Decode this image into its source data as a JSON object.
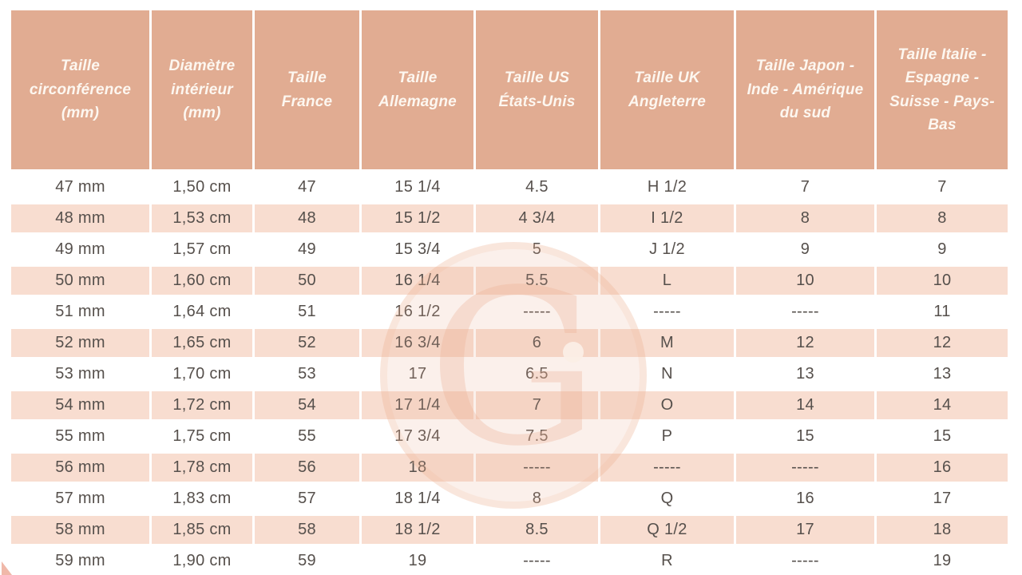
{
  "table": {
    "headers": [
      "Taille circonférence (mm)",
      "Diamètre intérieur (mm)",
      "Taille France",
      "Taille Allemagne",
      "Taille US États-Unis",
      "Taille UK Angleterre",
      "Taille Japon - Inde - Amérique du sud",
      "Taille Italie - Espagne - Suisse - Pays-Bas"
    ],
    "rows": [
      [
        "47 mm",
        "1,50 cm",
        "47",
        "15 1/4",
        "4.5",
        "H 1/2",
        "7",
        "7"
      ],
      [
        "48 mm",
        "1,53 cm",
        "48",
        "15 1/2",
        "4 3/4",
        "I 1/2",
        "8",
        "8"
      ],
      [
        "49 mm",
        "1,57 cm",
        "49",
        "15 3/4",
        "5",
        "J 1/2",
        "9",
        "9"
      ],
      [
        "50 mm",
        "1,60 cm",
        "50",
        "16 1/4",
        "5.5",
        "L",
        "10",
        "10"
      ],
      [
        "51 mm",
        "1,64 cm",
        "51",
        "16 1/2",
        "-----",
        "-----",
        "-----",
        "11"
      ],
      [
        "52 mm",
        "1,65 cm",
        "52",
        "16 3/4",
        "6",
        "M",
        "12",
        "12"
      ],
      [
        "53 mm",
        "1,70 cm",
        "53",
        "17",
        "6.5",
        "N",
        "13",
        "13"
      ],
      [
        "54 mm",
        "1,72 cm",
        "54",
        "17 1/4",
        "7",
        "O",
        "14",
        "14"
      ],
      [
        "55 mm",
        "1,75 cm",
        "55",
        "17 3/4",
        "7.5",
        "P",
        "15",
        "15"
      ],
      [
        "56 mm",
        "1,78 cm",
        "56",
        "18",
        "-----",
        "-----",
        "-----",
        "16"
      ],
      [
        "57 mm",
        "1,83 cm",
        "57",
        "18 1/4",
        "8",
        "Q",
        "16",
        "17"
      ],
      [
        "58 mm",
        "1,85 cm",
        "58",
        "18 1/2",
        "8.5",
        "Q 1/2",
        "17",
        "18"
      ],
      [
        "59 mm",
        "1,90 cm",
        "59",
        "19",
        "-----",
        "R",
        "-----",
        "19"
      ]
    ]
  },
  "chart_data": {
    "type": "table",
    "title": "",
    "columns": [
      "Taille circonférence (mm)",
      "Diamètre intérieur (mm)",
      "Taille France",
      "Taille Allemagne",
      "Taille US États-Unis",
      "Taille UK Angleterre",
      "Taille Japon - Inde - Amérique du sud",
      "Taille Italie - Espagne - Suisse - Pays-Bas"
    ],
    "rows": [
      [
        "47 mm",
        "1,50 cm",
        "47",
        "15 1/4",
        "4.5",
        "H 1/2",
        "7",
        "7"
      ],
      [
        "48 mm",
        "1,53 cm",
        "48",
        "15 1/2",
        "4 3/4",
        "I 1/2",
        "8",
        "8"
      ],
      [
        "49 mm",
        "1,57 cm",
        "49",
        "15 3/4",
        "5",
        "J 1/2",
        "9",
        "9"
      ],
      [
        "50 mm",
        "1,60 cm",
        "50",
        "16 1/4",
        "5.5",
        "L",
        "10",
        "10"
      ],
      [
        "51 mm",
        "1,64 cm",
        "51",
        "16 1/2",
        "-----",
        "-----",
        "-----",
        "11"
      ],
      [
        "52 mm",
        "1,65 cm",
        "52",
        "16 3/4",
        "6",
        "M",
        "12",
        "12"
      ],
      [
        "53 mm",
        "1,70 cm",
        "53",
        "17",
        "6.5",
        "N",
        "13",
        "13"
      ],
      [
        "54 mm",
        "1,72 cm",
        "54",
        "17 1/4",
        "7",
        "O",
        "14",
        "14"
      ],
      [
        "55 mm",
        "1,75 cm",
        "55",
        "17 3/4",
        "7.5",
        "P",
        "15",
        "15"
      ],
      [
        "56 mm",
        "1,78 cm",
        "56",
        "18",
        "-----",
        "-----",
        "-----",
        "16"
      ],
      [
        "57 mm",
        "1,83 cm",
        "57",
        "18 1/4",
        "8",
        "Q",
        "16",
        "17"
      ],
      [
        "58 mm",
        "1,85 cm",
        "58",
        "18 1/2",
        "8.5",
        "Q 1/2",
        "17",
        "18"
      ],
      [
        "59 mm",
        "1,90 cm",
        "59",
        "19",
        "-----",
        "R",
        "-----",
        "19"
      ]
    ]
  },
  "watermark": {
    "letter": "G"
  },
  "colors": {
    "header_bg": "#e1ac92",
    "row_alt_bg": "#f8ddd0",
    "header_text": "#fdf7f0",
    "cell_text": "#56504c",
    "watermark": "#ebad8e"
  }
}
